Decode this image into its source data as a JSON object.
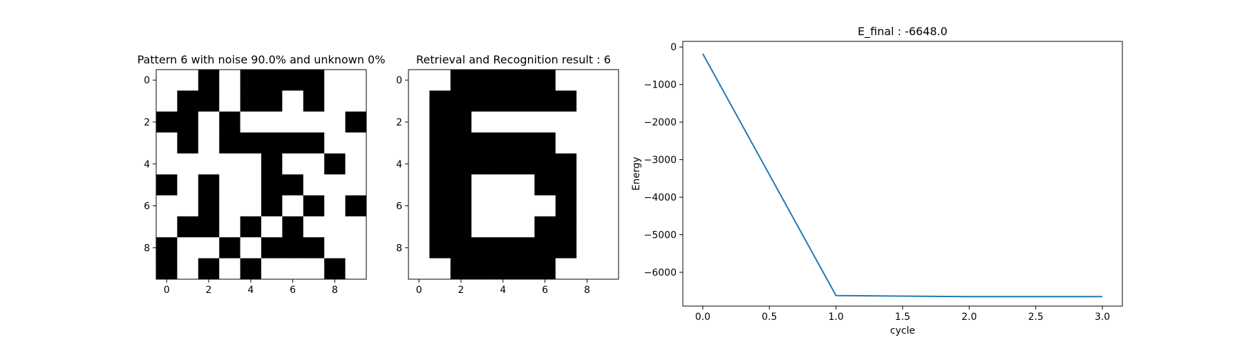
{
  "chart_data": [
    {
      "type": "heatmap",
      "title": "Pattern 6 with noise 90.0% and unknown 0%",
      "xticks": [
        "0",
        "2",
        "4",
        "6",
        "8"
      ],
      "yticks": [
        "0",
        "2",
        "4",
        "6",
        "8"
      ],
      "grid": [
        [
          0,
          0,
          1,
          0,
          1,
          1,
          1,
          1,
          0,
          0
        ],
        [
          0,
          1,
          1,
          0,
          1,
          1,
          0,
          1,
          0,
          0
        ],
        [
          1,
          1,
          0,
          1,
          0,
          0,
          0,
          0,
          0,
          1
        ],
        [
          0,
          1,
          0,
          1,
          1,
          1,
          1,
          1,
          0,
          0
        ],
        [
          0,
          0,
          0,
          0,
          0,
          1,
          0,
          0,
          1,
          0
        ],
        [
          1,
          0,
          1,
          0,
          0,
          1,
          1,
          0,
          0,
          0
        ],
        [
          0,
          0,
          1,
          0,
          0,
          1,
          0,
          1,
          0,
          1
        ],
        [
          0,
          1,
          1,
          0,
          1,
          0,
          1,
          0,
          0,
          0
        ],
        [
          1,
          0,
          0,
          1,
          0,
          1,
          1,
          1,
          0,
          0
        ],
        [
          1,
          0,
          1,
          0,
          1,
          0,
          0,
          0,
          1,
          0
        ]
      ],
      "colors": {
        "on": "#000000",
        "off": "#ffffff"
      }
    },
    {
      "type": "heatmap",
      "title": "Retrieval and Recognition result : 6",
      "xticks": [
        "0",
        "2",
        "4",
        "6",
        "8"
      ],
      "yticks": [
        "0",
        "2",
        "4",
        "6",
        "8"
      ],
      "grid": [
        [
          0,
          0,
          1,
          1,
          1,
          1,
          1,
          0,
          0,
          0
        ],
        [
          0,
          1,
          1,
          1,
          1,
          1,
          1,
          1,
          0,
          0
        ],
        [
          0,
          1,
          1,
          0,
          0,
          0,
          0,
          0,
          0,
          0
        ],
        [
          0,
          1,
          1,
          1,
          1,
          1,
          1,
          0,
          0,
          0
        ],
        [
          0,
          1,
          1,
          1,
          1,
          1,
          1,
          1,
          0,
          0
        ],
        [
          0,
          1,
          1,
          0,
          0,
          0,
          1,
          1,
          0,
          0
        ],
        [
          0,
          1,
          1,
          0,
          0,
          0,
          0,
          1,
          0,
          0
        ],
        [
          0,
          1,
          1,
          0,
          0,
          0,
          1,
          1,
          0,
          0
        ],
        [
          0,
          1,
          1,
          1,
          1,
          1,
          1,
          1,
          0,
          0
        ],
        [
          0,
          0,
          1,
          1,
          1,
          1,
          1,
          0,
          0,
          0
        ]
      ],
      "colors": {
        "on": "#000000",
        "off": "#ffffff"
      }
    },
    {
      "type": "line",
      "title": "E_final : -6648.0",
      "xlabel": "cycle",
      "ylabel": "Energy",
      "x": [
        0,
        1,
        2,
        3
      ],
      "series": [
        {
          "values": [
            -180,
            -6620,
            -6648,
            -6648
          ],
          "color": "#1f77b4"
        }
      ],
      "xlim": [
        -0.15,
        3.15
      ],
      "ylim": [
        -6900,
        150
      ],
      "xticks": [
        0.0,
        0.5,
        1.0,
        1.5,
        2.0,
        2.5,
        3.0
      ],
      "xtick_labels": [
        "0.0",
        "0.5",
        "1.0",
        "1.5",
        "2.0",
        "2.5",
        "3.0"
      ],
      "yticks": [
        0,
        -1000,
        -2000,
        -3000,
        -4000,
        -5000,
        -6000
      ],
      "ytick_labels": [
        "0",
        "−1000",
        "−2000",
        "−3000",
        "−4000",
        "−5000",
        "−6000"
      ],
      "grid": false
    }
  ]
}
